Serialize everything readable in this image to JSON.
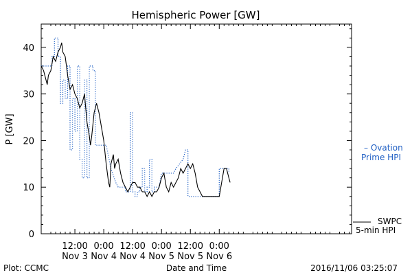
{
  "footer": {
    "left": "Plot: CCMC",
    "center": "Date and Time",
    "right": "2016/11/06 03:25:07"
  },
  "chart_data": {
    "type": "line",
    "title": "Hemispheric Power [GW]",
    "xlabel": "Date and Time",
    "ylabel": "P [GW]",
    "x_unit": "hours since 2016-11-02 00:00",
    "xlim": [
      22,
      151
    ],
    "ylim": [
      0,
      45
    ],
    "yticks": [
      0,
      10,
      20,
      30,
      40
    ],
    "xticks": [
      {
        "x": 36,
        "line1": "12:00",
        "line2": "Nov 3"
      },
      {
        "x": 48,
        "line1": "0:00",
        "line2": "Nov 4"
      },
      {
        "x": 60,
        "line1": "12:00",
        "line2": "Nov 4"
      },
      {
        "x": 72,
        "line1": "0:00",
        "line2": "Nov 5"
      },
      {
        "x": 84,
        "line1": "12:00",
        "line2": "Nov 5"
      },
      {
        "x": 96,
        "line1": "0:00",
        "line2": "Nov 6"
      }
    ],
    "grid": false,
    "series": [
      {
        "name": "SWPC 5-min HPI",
        "legend_line1": "SWPC",
        "legend_line2": "5-min HPI",
        "color": "#000000",
        "style": "solid",
        "points": [
          [
            22,
            36
          ],
          [
            23,
            35
          ],
          [
            24,
            33
          ],
          [
            24.5,
            32
          ],
          [
            25,
            34
          ],
          [
            26,
            35
          ],
          [
            27,
            38
          ],
          [
            28,
            37
          ],
          [
            29,
            39
          ],
          [
            30,
            40
          ],
          [
            30.5,
            41
          ],
          [
            31,
            39
          ],
          [
            32,
            38
          ],
          [
            33,
            34
          ],
          [
            34,
            31
          ],
          [
            35,
            32
          ],
          [
            36,
            30
          ],
          [
            37,
            29
          ],
          [
            38,
            27
          ],
          [
            39,
            28
          ],
          [
            40,
            30
          ],
          [
            40.5,
            27
          ],
          [
            41,
            24
          ],
          [
            42,
            21
          ],
          [
            42.5,
            19
          ],
          [
            43,
            21
          ],
          [
            44,
            26
          ],
          [
            45,
            28
          ],
          [
            46,
            26
          ],
          [
            47,
            23
          ],
          [
            48,
            20
          ],
          [
            49,
            15
          ],
          [
            50,
            11
          ],
          [
            50.5,
            10
          ],
          [
            51,
            15
          ],
          [
            52,
            17
          ],
          [
            52.5,
            14
          ],
          [
            53,
            15
          ],
          [
            54,
            16
          ],
          [
            55,
            13
          ],
          [
            56,
            11
          ],
          [
            57,
            10
          ],
          [
            58,
            9
          ],
          [
            59,
            10
          ],
          [
            60,
            11
          ],
          [
            61,
            11
          ],
          [
            62,
            10
          ],
          [
            63,
            10
          ],
          [
            64,
            9
          ],
          [
            65,
            9
          ],
          [
            66,
            8
          ],
          [
            67,
            9
          ],
          [
            68,
            8
          ],
          [
            69,
            9
          ],
          [
            70,
            9
          ],
          [
            71,
            10
          ],
          [
            72,
            12
          ],
          [
            73,
            13
          ],
          [
            74,
            10
          ],
          [
            75,
            9
          ],
          [
            76,
            11
          ],
          [
            77,
            10
          ],
          [
            78,
            11
          ],
          [
            79,
            12
          ],
          [
            80,
            14
          ],
          [
            81,
            13
          ],
          [
            82,
            14
          ],
          [
            83,
            15
          ],
          [
            84,
            14
          ],
          [
            85,
            15
          ],
          [
            86,
            13
          ],
          [
            87,
            10
          ],
          [
            88,
            9
          ],
          [
            89,
            8
          ],
          [
            90,
            8
          ],
          [
            96,
            8
          ],
          [
            97,
            11
          ],
          [
            98,
            14
          ],
          [
            99,
            14
          ],
          [
            100,
            12
          ],
          [
            100.5,
            11
          ]
        ]
      },
      {
        "name": "Ovation Prime HPI",
        "legend_line1": "– Ovation",
        "legend_line2": "Prime HPI",
        "color": "#1f5fc4",
        "style": "dotted",
        "points": [
          [
            22,
            36
          ],
          [
            26.5,
            36
          ],
          [
            26.5,
            38
          ],
          [
            27.5,
            38
          ],
          [
            27.5,
            42
          ],
          [
            29,
            42
          ],
          [
            29,
            38
          ],
          [
            30,
            38
          ],
          [
            30,
            28
          ],
          [
            31,
            28
          ],
          [
            31,
            33
          ],
          [
            32,
            33
          ],
          [
            32,
            29
          ],
          [
            33,
            29
          ],
          [
            33,
            36
          ],
          [
            34,
            36
          ],
          [
            34,
            18
          ],
          [
            35,
            18
          ],
          [
            35,
            29
          ],
          [
            36,
            29
          ],
          [
            36,
            22
          ],
          [
            37,
            22
          ],
          [
            37,
            36
          ],
          [
            38,
            36
          ],
          [
            38,
            16
          ],
          [
            39,
            16
          ],
          [
            39,
            12
          ],
          [
            40,
            12
          ],
          [
            40,
            33
          ],
          [
            41,
            33
          ],
          [
            41,
            12
          ],
          [
            42,
            12
          ],
          [
            42,
            36
          ],
          [
            43.5,
            36
          ],
          [
            43.5,
            35
          ],
          [
            44.5,
            35
          ],
          [
            44.5,
            19
          ],
          [
            49,
            19
          ],
          [
            51,
            14
          ],
          [
            53,
            11
          ],
          [
            54,
            10
          ],
          [
            57,
            10
          ],
          [
            57,
            9
          ],
          [
            59,
            9
          ],
          [
            59,
            26
          ],
          [
            60,
            26
          ],
          [
            60,
            9
          ],
          [
            61,
            9
          ],
          [
            61,
            8
          ],
          [
            62,
            8
          ],
          [
            62,
            9
          ],
          [
            63,
            9
          ],
          [
            63,
            10
          ],
          [
            64,
            10
          ],
          [
            64,
            14
          ],
          [
            65,
            14
          ],
          [
            65,
            9
          ],
          [
            66,
            9
          ],
          [
            66,
            10
          ],
          [
            67,
            10
          ],
          [
            67,
            16
          ],
          [
            68,
            16
          ],
          [
            68,
            9
          ],
          [
            69,
            9
          ],
          [
            69,
            10
          ],
          [
            71,
            10
          ],
          [
            72,
            13
          ],
          [
            77,
            13
          ],
          [
            78,
            14
          ],
          [
            81,
            16
          ],
          [
            82,
            18
          ],
          [
            83,
            18
          ],
          [
            83,
            8
          ],
          [
            89,
            8
          ],
          [
            96,
            8
          ],
          [
            96,
            14
          ],
          [
            100,
            14
          ],
          [
            100,
            13
          ]
        ]
      }
    ]
  }
}
